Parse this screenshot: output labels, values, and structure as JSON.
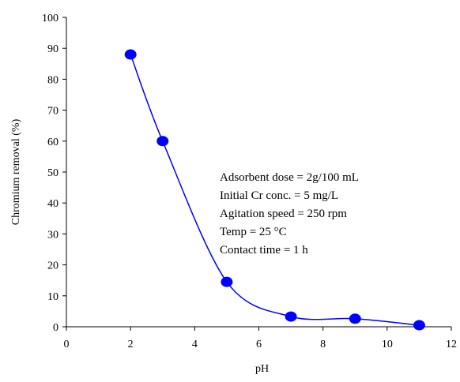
{
  "chart_data": {
    "type": "line",
    "xlabel": "pH",
    "ylabel": "Chromium removal (%)",
    "xlim": [
      0,
      12
    ],
    "ylim": [
      0,
      100
    ],
    "xticks": [
      0,
      2,
      4,
      6,
      8,
      10,
      12
    ],
    "yticks": [
      0,
      10,
      20,
      30,
      40,
      50,
      60,
      70,
      80,
      90,
      100
    ],
    "grid": false,
    "smooth": true,
    "series": [
      {
        "color": "#0000ff",
        "x": [
          2,
          3,
          5,
          7,
          9,
          11
        ],
        "y": [
          88,
          60,
          14.5,
          3.3,
          2.6,
          0.5
        ]
      }
    ],
    "annotations": [
      "Adsorbent dose = 2g/100 mL",
      "Initial Cr conc. = 5 mg/L",
      "Agitation speed = 250 rpm",
      "Temp = 25 °C",
      "Contact time = 1 h"
    ]
  }
}
